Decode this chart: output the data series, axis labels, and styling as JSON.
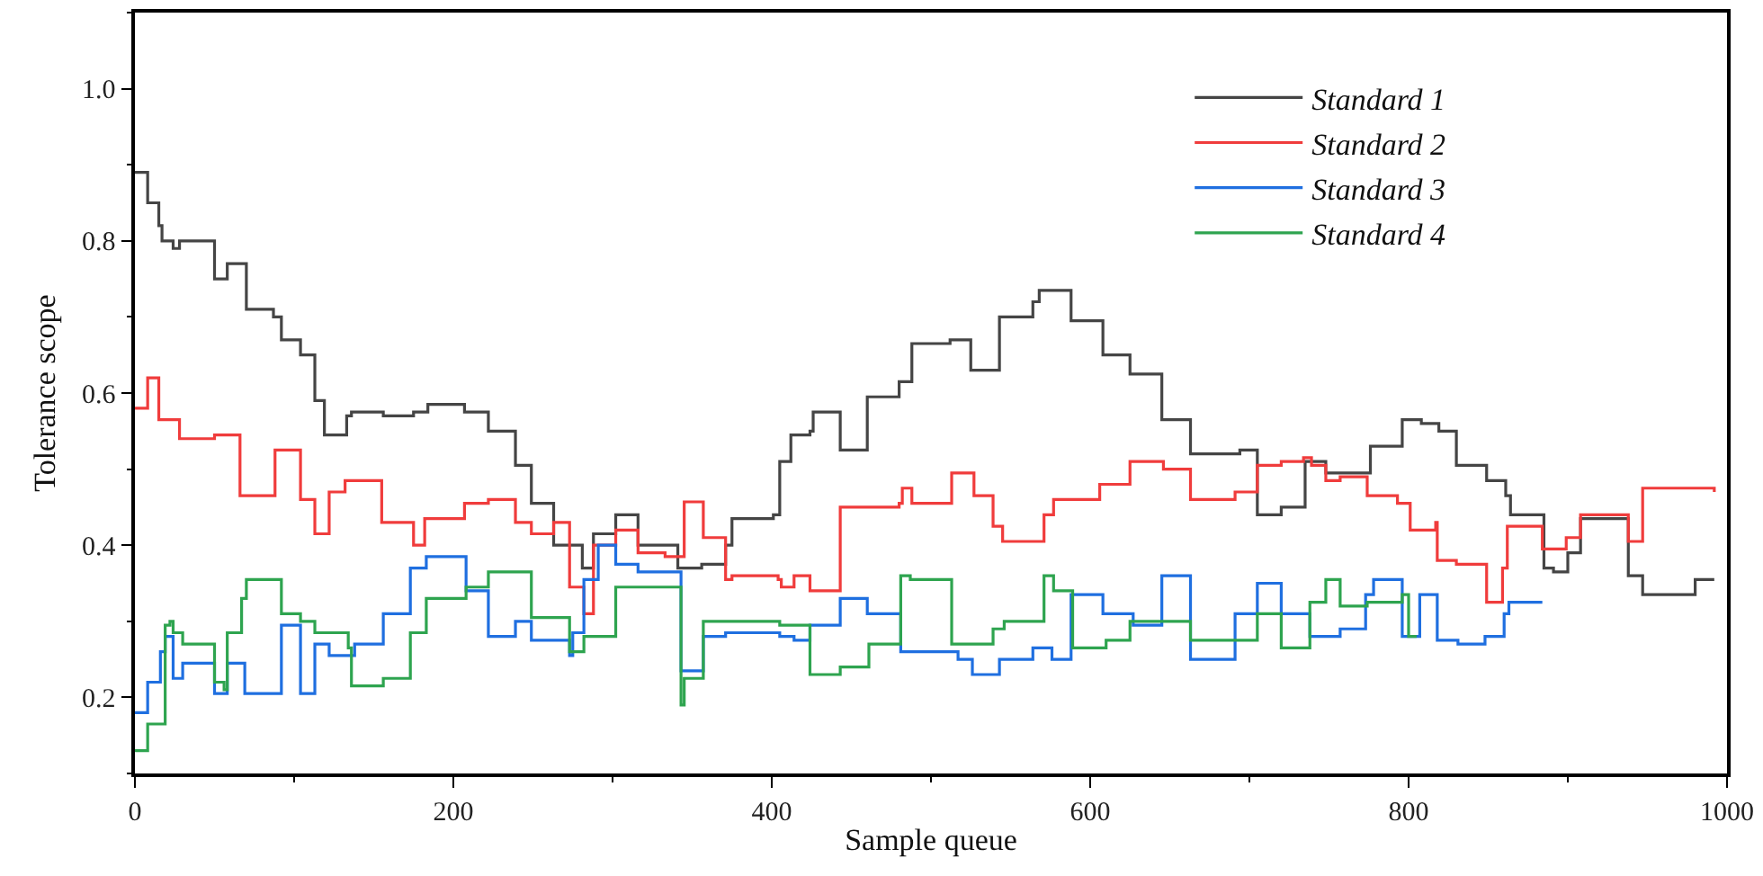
{
  "chart_data": {
    "type": "step",
    "xlabel": "Sample queue",
    "ylabel": "Tolerance scope",
    "xlim": [
      0,
      1000
    ],
    "ylim": [
      0.1,
      1.1
    ],
    "xticks": [
      0,
      200,
      400,
      600,
      800,
      1000
    ],
    "yticks": [
      0.2,
      0.4,
      0.6,
      0.8,
      {
        "value": 1,
        "label": "1.0"
      }
    ],
    "legend": "top right",
    "grid": false,
    "marker": "none",
    "line_style": "solid",
    "series": [
      {
        "name": "Standard 1",
        "color": "#454545",
        "x": [
          0,
          8,
          15,
          17,
          24,
          28,
          50,
          58,
          70,
          87,
          92,
          104,
          113,
          119,
          133,
          136,
          156,
          175,
          184,
          207,
          222,
          239,
          249,
          263,
          281,
          288,
          302,
          316,
          341,
          356,
          371,
          375,
          401,
          405,
          412,
          424,
          426,
          443,
          460,
          480,
          488,
          512,
          525,
          543,
          564,
          568,
          588,
          608,
          625,
          645,
          663,
          694,
          705,
          720,
          735,
          748,
          776,
          796,
          808,
          819,
          830,
          849,
          861,
          864,
          885,
          891,
          900,
          908,
          938,
          947,
          980,
          992
        ],
        "values": [
          0.89,
          0.85,
          0.82,
          0.8,
          0.79,
          0.8,
          0.75,
          0.77,
          0.71,
          0.7,
          0.67,
          0.65,
          0.59,
          0.545,
          0.57,
          0.575,
          0.57,
          0.575,
          0.585,
          0.575,
          0.55,
          0.505,
          0.455,
          0.4,
          0.37,
          0.415,
          0.44,
          0.4,
          0.37,
          0.375,
          0.4,
          0.435,
          0.44,
          0.51,
          0.545,
          0.55,
          0.575,
          0.525,
          0.595,
          0.615,
          0.665,
          0.67,
          0.63,
          0.7,
          0.72,
          0.735,
          0.695,
          0.65,
          0.625,
          0.565,
          0.52,
          0.525,
          0.44,
          0.45,
          0.51,
          0.495,
          0.53,
          0.565,
          0.56,
          0.55,
          0.505,
          0.485,
          0.465,
          0.44,
          0.37,
          0.365,
          0.39,
          0.435,
          0.36,
          0.335,
          0.355,
          0.355
        ]
      },
      {
        "name": "Standard 2",
        "color": "#f03c3c",
        "x": [
          0,
          8,
          15,
          28,
          50,
          66,
          88,
          104,
          113,
          122,
          132,
          155,
          175,
          182,
          207,
          222,
          239,
          249,
          263,
          273,
          282,
          288,
          302,
          316,
          333,
          345,
          357,
          371,
          375,
          404,
          406,
          414,
          424,
          443,
          480,
          482,
          488,
          513,
          527,
          539,
          545,
          571,
          577,
          606,
          625,
          646,
          663,
          691,
          705,
          720,
          734,
          739,
          748,
          757,
          774,
          793,
          801,
          817,
          818,
          830,
          849,
          859,
          862,
          884,
          899,
          908,
          938,
          947,
          992
        ],
        "values": [
          0.58,
          0.62,
          0.565,
          0.54,
          0.545,
          0.465,
          0.525,
          0.46,
          0.415,
          0.47,
          0.485,
          0.43,
          0.4,
          0.435,
          0.455,
          0.46,
          0.43,
          0.415,
          0.43,
          0.345,
          0.31,
          0.4,
          0.42,
          0.39,
          0.385,
          0.457,
          0.41,
          0.355,
          0.36,
          0.355,
          0.345,
          0.36,
          0.34,
          0.45,
          0.455,
          0.475,
          0.455,
          0.495,
          0.465,
          0.425,
          0.405,
          0.44,
          0.46,
          0.48,
          0.51,
          0.5,
          0.46,
          0.47,
          0.505,
          0.51,
          0.515,
          0.505,
          0.485,
          0.49,
          0.465,
          0.455,
          0.42,
          0.43,
          0.38,
          0.375,
          0.325,
          0.37,
          0.425,
          0.395,
          0.41,
          0.44,
          0.405,
          0.475,
          0.47
        ]
      },
      {
        "name": "Standard 3",
        "color": "#1f6fe0",
        "x": [
          0,
          8,
          16,
          19,
          24,
          30,
          50,
          58,
          69,
          92,
          104,
          113,
          122,
          138,
          156,
          173,
          183,
          208,
          222,
          239,
          249,
          273,
          275,
          282,
          291,
          302,
          316,
          343,
          357,
          371,
          405,
          414,
          424,
          443,
          460,
          481,
          517,
          526,
          543,
          564,
          576,
          588,
          608,
          627,
          645,
          663,
          691,
          705,
          720,
          738,
          757,
          773,
          778,
          796,
          807,
          818,
          831,
          848,
          860,
          863,
          884
        ],
        "values": [
          0.18,
          0.22,
          0.26,
          0.28,
          0.225,
          0.245,
          0.205,
          0.245,
          0.205,
          0.295,
          0.205,
          0.27,
          0.255,
          0.27,
          0.31,
          0.37,
          0.385,
          0.34,
          0.28,
          0.3,
          0.275,
          0.255,
          0.285,
          0.355,
          0.4,
          0.375,
          0.365,
          0.235,
          0.28,
          0.285,
          0.28,
          0.275,
          0.295,
          0.33,
          0.31,
          0.26,
          0.25,
          0.23,
          0.25,
          0.265,
          0.25,
          0.335,
          0.31,
          0.295,
          0.36,
          0.25,
          0.31,
          0.35,
          0.31,
          0.28,
          0.29,
          0.335,
          0.355,
          0.28,
          0.335,
          0.275,
          0.27,
          0.28,
          0.31,
          0.325,
          0.325
        ]
      },
      {
        "name": "Standard 4",
        "color": "#2ea44f",
        "x": [
          0,
          8,
          19,
          22,
          24,
          30,
          50,
          56,
          58,
          67,
          70,
          92,
          104,
          113,
          134,
          136,
          156,
          173,
          183,
          208,
          222,
          249,
          273,
          282,
          302,
          343,
          345,
          357,
          405,
          424,
          443,
          461,
          481,
          487,
          513,
          539,
          546,
          571,
          577,
          589,
          610,
          625,
          663,
          705,
          720,
          738,
          748,
          757,
          774,
          796,
          800,
          805
        ],
        "values": [
          0.13,
          0.165,
          0.295,
          0.3,
          0.285,
          0.27,
          0.22,
          0.21,
          0.285,
          0.33,
          0.355,
          0.31,
          0.3,
          0.285,
          0.265,
          0.215,
          0.225,
          0.285,
          0.33,
          0.345,
          0.365,
          0.305,
          0.26,
          0.28,
          0.345,
          0.19,
          0.225,
          0.3,
          0.295,
          0.23,
          0.24,
          0.27,
          0.36,
          0.355,
          0.27,
          0.29,
          0.3,
          0.36,
          0.34,
          0.265,
          0.275,
          0.3,
          0.275,
          0.31,
          0.265,
          0.325,
          0.355,
          0.32,
          0.325,
          0.335,
          0.28,
          0.28
        ]
      }
    ]
  }
}
